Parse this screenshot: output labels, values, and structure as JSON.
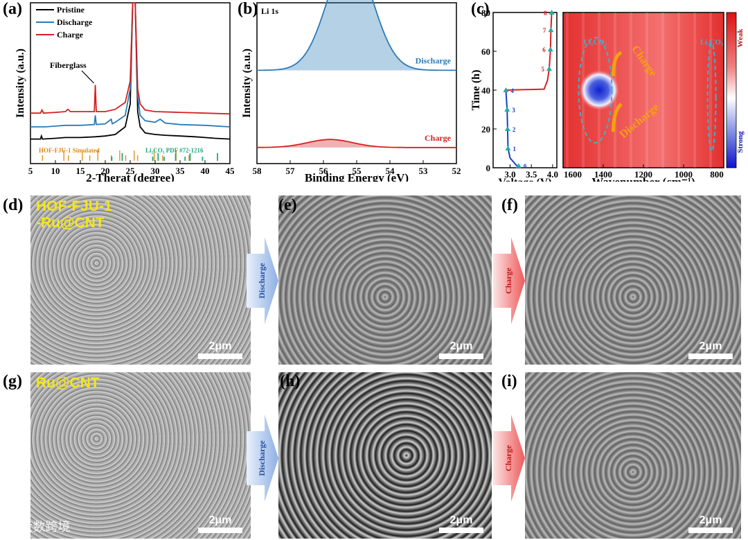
{
  "panel_labels": {
    "a": "(a)",
    "b": "(b)",
    "c": "(c)",
    "d": "(d)",
    "e": "(e)",
    "f": "(f)",
    "g": "(g)",
    "h": "(h)",
    "i": "(i)"
  },
  "colors": {
    "pristine": "#000000",
    "discharge": "#2a7ab8",
    "charge": "#d62020",
    "simulated": "#e08a10",
    "pdf": "#1fa87a",
    "heat_hot": "#e02020",
    "heat_cold": "#1010d0"
  },
  "chart_data": [
    {
      "id": "a",
      "type": "line",
      "xlabel": "2-Therat (degree)",
      "ylabel": "Intensity (a.u.)",
      "xlim": [
        5,
        45
      ],
      "xticks": [
        5,
        10,
        15,
        20,
        25,
        30,
        35,
        40,
        45
      ],
      "legend": [
        "Pristine",
        "Discharge",
        "Charge"
      ],
      "annotations": [
        "Fiberglass",
        "HOF-FJU-1 Simulated",
        "Li₂CO₃ PDF #72-1216"
      ],
      "series": [
        {
          "name": "Pristine",
          "x": [
            5,
            7,
            7.2,
            7.4,
            10,
            12,
            15,
            18,
            20,
            22,
            24,
            25,
            25.5,
            26,
            26.5,
            27,
            28,
            30,
            32,
            35,
            38,
            40,
            42,
            45
          ],
          "y": [
            0.14,
            0.14,
            0.18,
            0.14,
            0.15,
            0.16,
            0.16,
            0.17,
            0.18,
            0.2,
            0.3,
            0.6,
            2.0,
            2.0,
            0.5,
            0.3,
            0.22,
            0.2,
            0.19,
            0.18,
            0.17,
            0.16,
            0.15,
            0.14
          ]
        },
        {
          "name": "Discharge",
          "x": [
            5,
            8,
            10,
            12,
            15,
            17.8,
            18,
            18.2,
            20,
            21.2,
            21.4,
            22,
            24,
            25,
            25.5,
            26,
            26.5,
            27,
            28,
            30,
            31,
            32,
            35,
            40,
            45
          ],
          "y": [
            0.3,
            0.3,
            0.31,
            0.32,
            0.32,
            0.33,
            0.45,
            0.33,
            0.34,
            0.4,
            0.34,
            0.36,
            0.45,
            0.8,
            2.0,
            2.0,
            0.7,
            0.45,
            0.38,
            0.36,
            0.4,
            0.35,
            0.33,
            0.32,
            0.3
          ]
        },
        {
          "name": "Charge",
          "x": [
            5,
            7,
            7.3,
            7.6,
            10,
            12,
            12.5,
            13,
            15,
            17.8,
            18,
            18.2,
            20,
            22,
            24,
            25,
            25.5,
            26,
            26.5,
            27,
            28,
            30,
            35,
            40,
            45
          ],
          "y": [
            0.48,
            0.48,
            0.52,
            0.48,
            0.49,
            0.5,
            0.53,
            0.5,
            0.5,
            0.5,
            0.85,
            0.5,
            0.5,
            0.53,
            0.62,
            0.9,
            2.0,
            2.0,
            0.8,
            0.6,
            0.52,
            0.5,
            0.49,
            0.48,
            0.47
          ]
        }
      ],
      "simulated_peaks": [
        7.4,
        11.7,
        12.6,
        15.4,
        16.9,
        18.5,
        21.2,
        22.9,
        24.1,
        25.8,
        26.5,
        29.8,
        31.5,
        34.2,
        36.8
      ],
      "pdf_peaks": [
        21.3,
        23.4,
        29.5,
        30.6,
        31.8,
        34.1,
        36.0,
        37.0,
        39.5,
        42.5
      ]
    },
    {
      "id": "b",
      "type": "area",
      "title": "Li 1s",
      "xlabel": "Binding Energy (eV)",
      "ylabel": "Intensity (a.u.)",
      "xlim": [
        58,
        52
      ],
      "xticks": [
        58,
        57,
        56,
        55,
        54,
        53,
        52
      ],
      "series": [
        {
          "name": "Discharge",
          "center": 55.2,
          "height": 0.72,
          "fwhm": 1.6,
          "baseline": 0.58
        },
        {
          "name": "Charge",
          "center": 55.8,
          "height": 0.05,
          "fwhm": 1.6,
          "baseline": 0.1
        }
      ]
    },
    {
      "id": "c_left",
      "type": "line",
      "xlabel": "Voltage (V)",
      "ylabel": "Time (h)",
      "xlim": [
        2.6,
        4.1
      ],
      "ylim": [
        0,
        80
      ],
      "xticks": [
        3.0,
        3.5,
        4.0
      ],
      "yticks": [
        0,
        20,
        40,
        60,
        80
      ],
      "markers": [
        {
          "label": "0",
          "x": 3.2,
          "y": 1
        },
        {
          "label": "1",
          "x": 2.95,
          "y": 10
        },
        {
          "label": "2",
          "x": 2.94,
          "y": 20
        },
        {
          "label": "3",
          "x": 2.93,
          "y": 30
        },
        {
          "label": "4",
          "x": 2.9,
          "y": 40
        },
        {
          "label": "5",
          "x": 3.92,
          "y": 51
        },
        {
          "label": "6",
          "x": 3.95,
          "y": 61
        },
        {
          "label": "7",
          "x": 3.96,
          "y": 71
        },
        {
          "label": "8",
          "x": 3.98,
          "y": 80
        }
      ],
      "series": [
        {
          "name": "discharge",
          "x": [
            3.2,
            3.0,
            2.95,
            2.94,
            2.93,
            2.9
          ],
          "y": [
            0,
            5,
            10,
            20,
            30,
            40
          ]
        },
        {
          "name": "charge",
          "x": [
            2.9,
            3.8,
            3.88,
            3.92,
            3.95,
            3.96,
            3.98
          ],
          "y": [
            40,
            40.5,
            45,
            51,
            61,
            71,
            80
          ]
        }
      ]
    },
    {
      "id": "c_right",
      "type": "heatmap",
      "xlabel": "Wavenumber (cm⁻¹)",
      "xlim": [
        1600,
        800
      ],
      "xticks": [
        1600,
        1400,
        1200,
        1000,
        800
      ],
      "annotations": [
        "Li₂CO₃",
        "Li₂CO₃",
        "Charge",
        "Discharge"
      ],
      "colorbar": [
        "Weak",
        "Strong"
      ]
    }
  ],
  "sem": {
    "d": {
      "tag_line1": "HOF-FJU-1",
      "tag_line2": "-Ru@CNT",
      "scale": "2μm"
    },
    "e": {
      "scale": "2μm"
    },
    "f": {
      "scale": "2μm"
    },
    "g": {
      "tag": "Ru@CNT",
      "scale": "2μm"
    },
    "h": {
      "scale": "2μm"
    },
    "i": {
      "scale": "2μm"
    }
  },
  "arrows": {
    "discharge": "Discharge",
    "charge": "Charge"
  },
  "watermark": "大数跨境"
}
